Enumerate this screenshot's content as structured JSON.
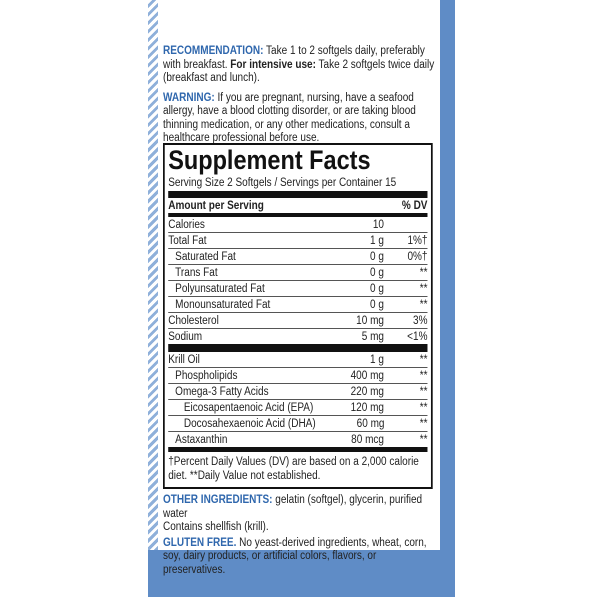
{
  "recommendation": {
    "label": "RECOMMENDATION:",
    "text": "Take 1 to 2 softgels daily, preferably with breakfast.",
    "emphasis": "For intensive use:",
    "text2": "Take 2 softgels twice daily (breakfast and lunch)."
  },
  "warning": {
    "label": "WARNING:",
    "text": "If you are pregnant, nursing, have a seafood allergy, have a blood clotting disorder, or are taking blood thinning medication, or any other medications, consult a healthcare professional before use."
  },
  "supplement_facts": {
    "title": "Supplement Facts",
    "serving": "Serving Size 2 Softgels / Servings per Container 15",
    "header": {
      "amount": "Amount per Serving",
      "dv": "% DV"
    },
    "rows": [
      {
        "name": "Calories",
        "amount": "10"
      },
      {
        "name": "Total Fat",
        "amount": "1 g",
        "dv": "1%†"
      },
      {
        "name": "Saturated Fat",
        "amount": "0 g",
        "dv": "0%†"
      },
      {
        "name": "Trans Fat",
        "amount": "0 g",
        "dv": "**"
      },
      {
        "name": "Polyunsaturated Fat",
        "amount": "0 g",
        "dv": "**"
      },
      {
        "name": "Monounsaturated Fat",
        "amount": "0 g",
        "dv": "**"
      },
      {
        "name": "Cholesterol",
        "amount": "10 mg",
        "dv": "3%"
      },
      {
        "name": "Sodium",
        "amount": "5 mg",
        "dv": "<1%"
      },
      {
        "name": "Krill Oil",
        "amount": "1 g",
        "dv": "**"
      },
      {
        "name": "Phospholipids",
        "amount": "400 mg",
        "dv": "**"
      },
      {
        "name": "Omega-3 Fatty Acids",
        "amount": "220 mg",
        "dv": "**"
      },
      {
        "name": "Eicosapentaenoic Acid (EPA)",
        "amount": "120 mg",
        "dv": "**"
      },
      {
        "name": "Docosahexaenoic Acid (DHA)",
        "amount": "60 mg",
        "dv": "**"
      },
      {
        "name": "Astaxanthin",
        "amount": "80 mcg",
        "dv": "**"
      }
    ],
    "footnote": "†Percent Daily Values (DV) are based on a 2,000 calorie diet. **Daily Value not established."
  },
  "other_ingredients": {
    "label": "OTHER INGREDIENTS:",
    "text": "gelatin (softgel), glycerin, purified water",
    "allergen": "Contains shellfish (krill)."
  },
  "gluten_free": {
    "label": "GLUTEN FREE.",
    "text": "No yeast-derived ingredients, wheat, corn, soy, dairy products, or artificial colors, flavors, or preservatives."
  }
}
